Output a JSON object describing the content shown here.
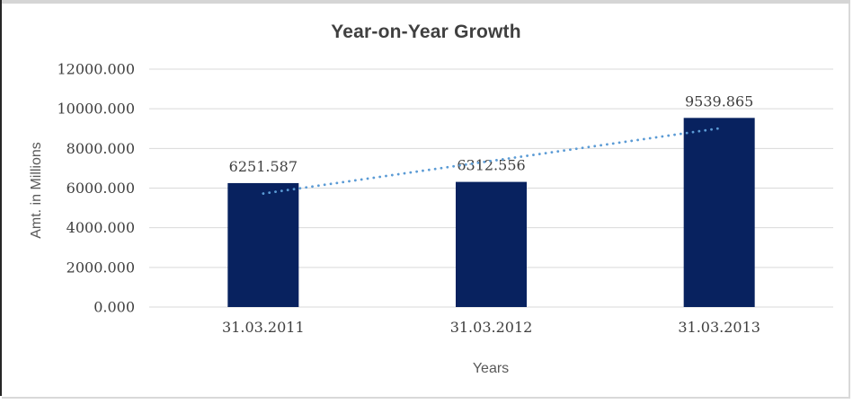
{
  "chart_data": {
    "type": "bar",
    "title": "Year-on-Year Growth",
    "categories": [
      "31.03.2011",
      "31.03.2012",
      "31.03.2013"
    ],
    "values": [
      6251.587,
      6312.556,
      9539.865
    ],
    "data_labels": [
      "6251.587",
      "6312.556",
      "9539.865"
    ],
    "xlabel": "Years",
    "ylabel": "Amt. in Millions",
    "ylim": [
      0,
      12000
    ],
    "yticks": [
      {
        "value": 12000,
        "label": "12000.000"
      },
      {
        "value": 10000,
        "label": "10000.000"
      },
      {
        "value": 8000,
        "label": "8000.000"
      },
      {
        "value": 6000,
        "label": "6000.000"
      },
      {
        "value": 4000,
        "label": "4000.000"
      },
      {
        "value": 2000,
        "label": "2000.000"
      },
      {
        "value": 0,
        "label": "0.000"
      }
    ],
    "grid": true,
    "legend": "none",
    "trendline": {
      "type": "linear",
      "line_style": "dotted",
      "color": "#5b9bd5"
    },
    "colors": {
      "bar": "#08225f",
      "gridline": "#d9d9d9",
      "title_text": "#404040",
      "tick_text": "#404040",
      "axis_title_text": "#595959"
    }
  }
}
